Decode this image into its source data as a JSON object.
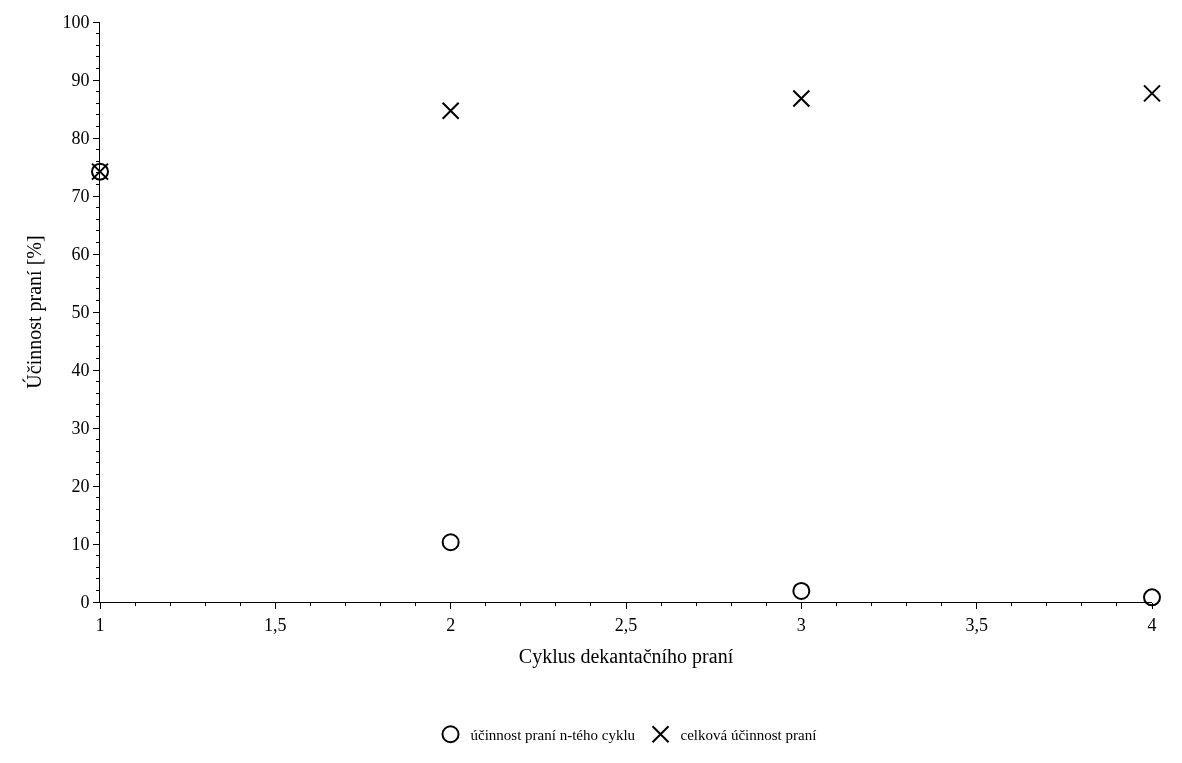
{
  "chart_data": {
    "type": "scatter",
    "xlabel": "Cyklus dekantačního praní",
    "ylabel": "Účinnost praní [%]",
    "x": [
      1,
      2,
      3,
      4
    ],
    "series": [
      {
        "name": "účinnost praní n-tého cyklu",
        "color": "#000000",
        "marker": "circle",
        "values": [
          74.2,
          10.3,
          1.9,
          0.8
        ]
      },
      {
        "name": "celková účinnost praní",
        "color": "#000000",
        "marker": "cross",
        "values": [
          74.2,
          84.7,
          86.8,
          87.7
        ]
      }
    ],
    "xlim": [
      1,
      4
    ],
    "ylim": [
      0,
      100
    ],
    "xticks": [
      1,
      {
        "value": 1.5,
        "label": "1,5"
      },
      2,
      {
        "value": 2.5,
        "label": "2,5"
      },
      3,
      {
        "value": 3.5,
        "label": "3,5"
      },
      4
    ],
    "yticks": [
      0,
      10,
      20,
      30,
      40,
      50,
      60,
      70,
      80,
      90,
      100
    ],
    "legend": "bottom"
  }
}
